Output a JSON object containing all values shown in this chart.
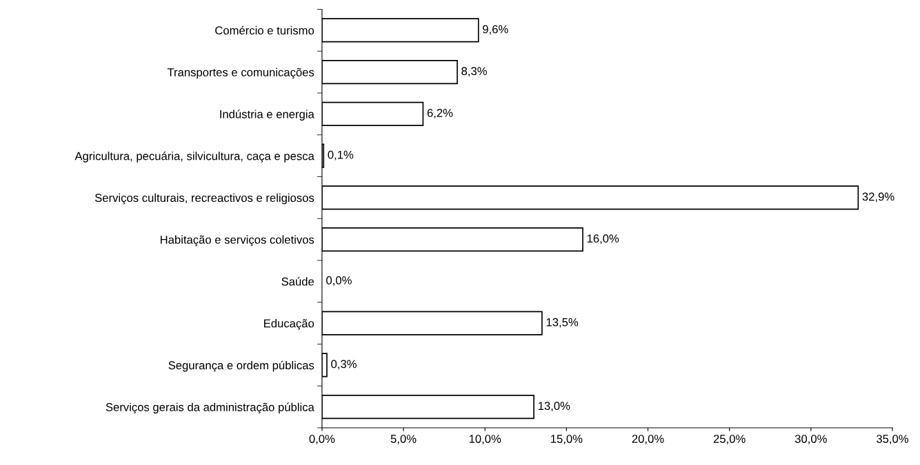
{
  "chart_data": {
    "type": "bar",
    "orientation": "horizontal",
    "categories": [
      "Comércio e turismo",
      "Transportes e comunicações",
      "Indústria e energia",
      "Agricultura, pecuária, silvicultura, caça e pesca",
      "Serviços culturais, recreactivos e religiosos",
      "Habitação e serviços coletivos",
      "Saúde",
      "Educação",
      "Segurança e ordem públicas",
      "Serviços gerais da administração pública"
    ],
    "values": [
      9.6,
      8.3,
      6.2,
      0.1,
      32.9,
      16.0,
      0.0,
      13.5,
      0.3,
      13.0
    ],
    "value_labels": [
      "9,6%",
      "8,3%",
      "6,2%",
      "0,1%",
      "32,9%",
      "16,0%",
      "0,0%",
      "13,5%",
      "0,3%",
      "13,0%"
    ],
    "color": "#ffffff",
    "xlim": [
      0,
      35
    ],
    "xticks": [
      {
        "value": 0,
        "label": "0,0%"
      },
      {
        "value": 5,
        "label": "5,0%"
      },
      {
        "value": 10,
        "label": "10,0%"
      },
      {
        "value": 15,
        "label": "15,0%"
      },
      {
        "value": 20,
        "label": "20,0%"
      },
      {
        "value": 25,
        "label": "25,0%"
      },
      {
        "value": 30,
        "label": "30,0%"
      },
      {
        "value": 35,
        "label": "35,0%"
      }
    ],
    "grid": false
  }
}
